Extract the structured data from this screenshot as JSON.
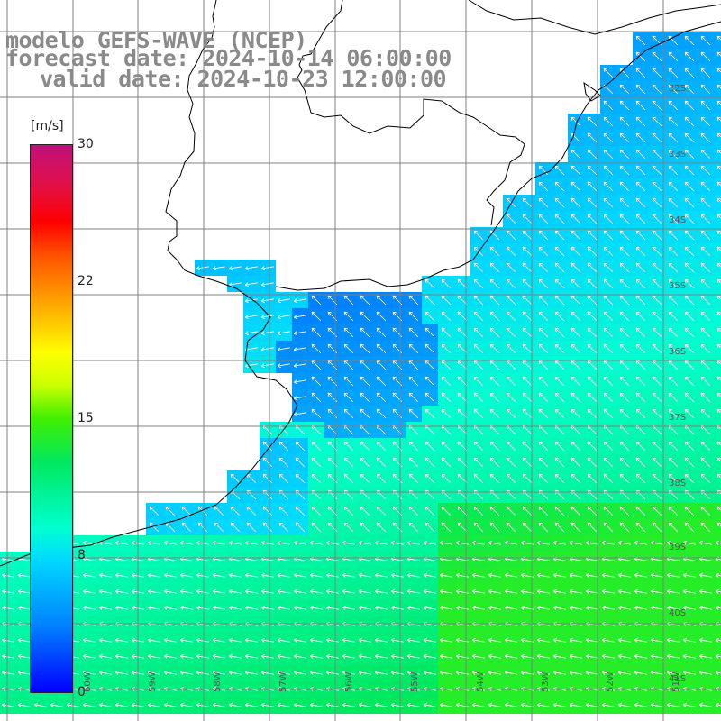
{
  "titles": {
    "model": "modelo GEFS-WAVE (NCEP)",
    "forecast": "forecast date: 2024-10-14 06:00:00",
    "valid": "valid date: 2024-10-23 12:00:00"
  },
  "colorbar": {
    "unit": "[m/s]",
    "ticks": [
      {
        "value": 30,
        "label": "30"
      },
      {
        "value": 22,
        "label": "22"
      },
      {
        "value": 15,
        "label": "15"
      },
      {
        "value": 8,
        "label": "8"
      },
      {
        "value": 0,
        "label": "0"
      }
    ]
  },
  "lat_labels": [
    "32S",
    "33S",
    "34S",
    "35S",
    "36S",
    "37S",
    "38S",
    "39S",
    "40S",
    "41S"
  ],
  "lon_labels": [
    "60W",
    "59W",
    "58W",
    "57W",
    "56W",
    "55W",
    "54W",
    "53W",
    "52W",
    "51W"
  ],
  "colors": {
    "grid": "#808080",
    "coast": "#000000",
    "arrow": "#ffffff",
    "title": "#8a8a8a"
  }
}
